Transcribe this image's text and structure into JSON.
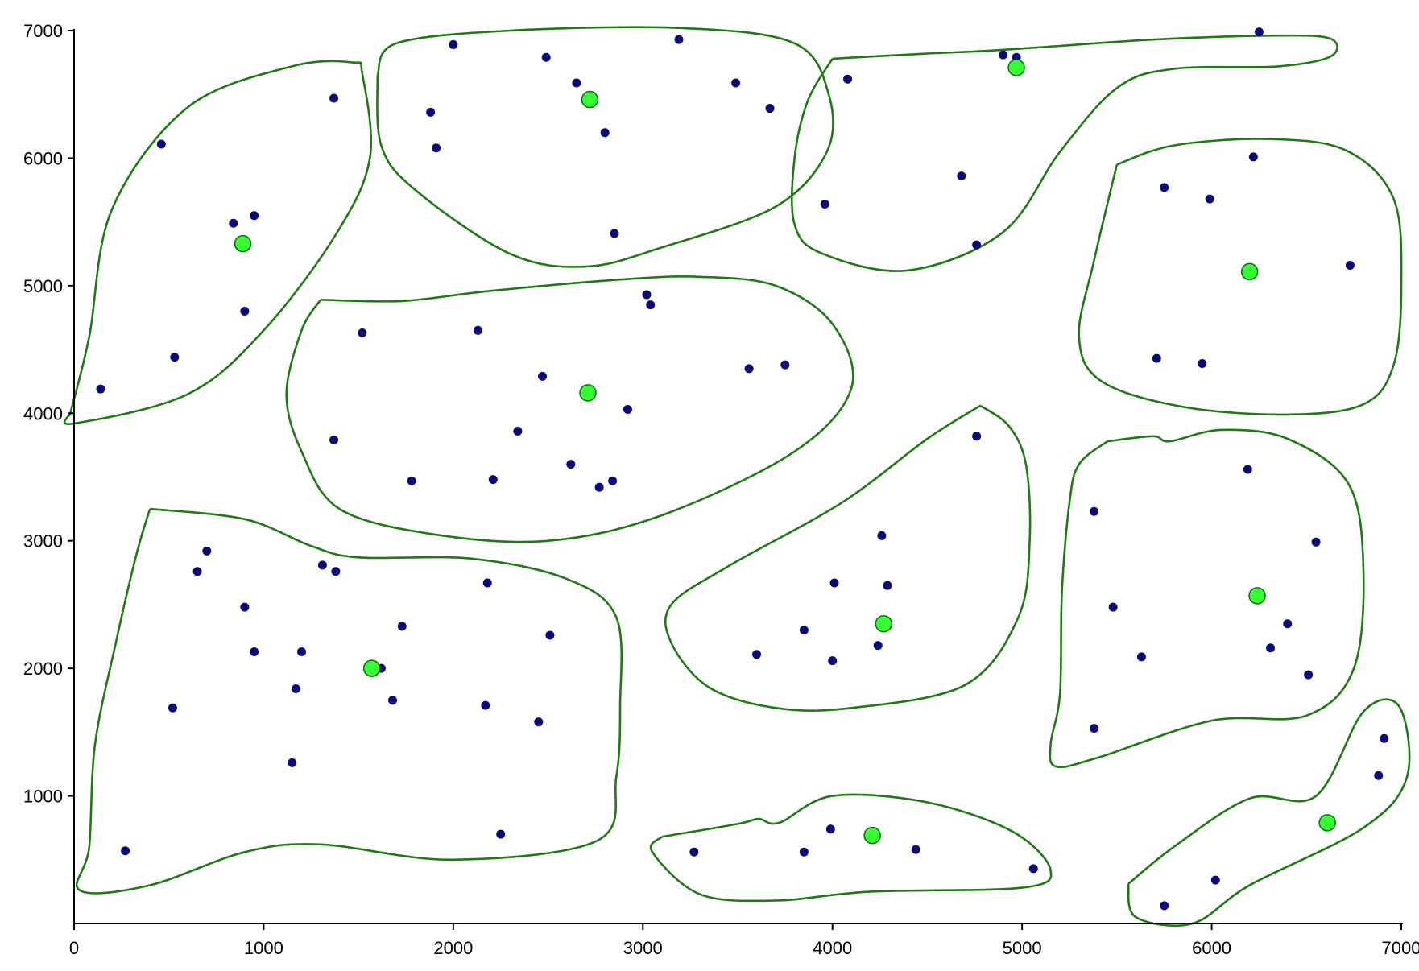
{
  "chart_data": {
    "type": "scatter",
    "title": "",
    "xlabel": "",
    "ylabel": "",
    "xlim": [
      0,
      7000
    ],
    "ylim": [
      0,
      7000
    ],
    "x_ticks": [
      "0",
      "1000",
      "2000",
      "3000",
      "4000",
      "5000",
      "6000",
      "7000"
    ],
    "y_ticks": [
      "1000",
      "2000",
      "3000",
      "4000",
      "5000",
      "6000",
      "7000"
    ],
    "grid": false,
    "legend": "none",
    "colors": {
      "points": "#0a0a7a",
      "centers_fill": "#33ff33",
      "centers_stroke": "#116611",
      "boundary": "#1e7a12",
      "axis": "#000000"
    },
    "series": [
      {
        "role": "points",
        "points": [
          [
            140,
            4190
          ],
          [
            460,
            6110
          ],
          [
            530,
            4440
          ],
          [
            840,
            5490
          ],
          [
            900,
            4800
          ],
          [
            950,
            5550
          ],
          [
            1370,
            6470
          ],
          [
            1880,
            6360
          ],
          [
            1910,
            6080
          ],
          [
            2000,
            6890
          ],
          [
            2490,
            6790
          ],
          [
            2650,
            6590
          ],
          [
            2800,
            6200
          ],
          [
            2850,
            5410
          ],
          [
            3190,
            6930
          ],
          [
            3490,
            6590
          ],
          [
            3670,
            6390
          ],
          [
            4080,
            6620
          ],
          [
            3960,
            5640
          ],
          [
            4680,
            5860
          ],
          [
            4760,
            5320
          ],
          [
            4900,
            6810
          ],
          [
            4970,
            6790
          ],
          [
            6250,
            6990
          ],
          [
            6220,
            6010
          ],
          [
            5750,
            5770
          ],
          [
            5990,
            5680
          ],
          [
            6730,
            5160
          ],
          [
            5710,
            4430
          ],
          [
            5950,
            4390
          ],
          [
            1520,
            4630
          ],
          [
            2130,
            4650
          ],
          [
            3020,
            4930
          ],
          [
            3040,
            4850
          ],
          [
            3560,
            4350
          ],
          [
            3750,
            4380
          ],
          [
            2470,
            4290
          ],
          [
            1370,
            3790
          ],
          [
            2340,
            3860
          ],
          [
            2920,
            4030
          ],
          [
            1780,
            3470
          ],
          [
            2210,
            3480
          ],
          [
            2620,
            3600
          ],
          [
            2770,
            3420
          ],
          [
            2840,
            3470
          ],
          [
            4760,
            3820
          ],
          [
            4260,
            3040
          ],
          [
            4010,
            2670
          ],
          [
            4290,
            2650
          ],
          [
            3850,
            2300
          ],
          [
            3600,
            2110
          ],
          [
            4240,
            2180
          ],
          [
            4000,
            2060
          ],
          [
            5380,
            3230
          ],
          [
            6190,
            3560
          ],
          [
            6550,
            2990
          ],
          [
            5480,
            2480
          ],
          [
            5630,
            2090
          ],
          [
            6400,
            2350
          ],
          [
            6310,
            2160
          ],
          [
            6510,
            1950
          ],
          [
            5380,
            1530
          ],
          [
            700,
            2920
          ],
          [
            650,
            2760
          ],
          [
            1310,
            2810
          ],
          [
            1380,
            2760
          ],
          [
            2180,
            2670
          ],
          [
            900,
            2480
          ],
          [
            950,
            2130
          ],
          [
            1200,
            2130
          ],
          [
            1730,
            2330
          ],
          [
            2510,
            2260
          ],
          [
            1620,
            2000
          ],
          [
            1170,
            1840
          ],
          [
            1680,
            1750
          ],
          [
            520,
            1690
          ],
          [
            2170,
            1710
          ],
          [
            2450,
            1580
          ],
          [
            1150,
            1260
          ],
          [
            270,
            570
          ],
          [
            2250,
            700
          ],
          [
            3270,
            560
          ],
          [
            3850,
            560
          ],
          [
            3990,
            740
          ],
          [
            4440,
            580
          ],
          [
            5060,
            430
          ],
          [
            6910,
            1450
          ],
          [
            6880,
            1160
          ],
          [
            6020,
            340
          ],
          [
            5750,
            140
          ]
        ]
      },
      {
        "role": "centers",
        "points": [
          [
            890,
            5330
          ],
          [
            2720,
            6460
          ],
          [
            4970,
            6710
          ],
          [
            6200,
            5110
          ],
          [
            2710,
            4160
          ],
          [
            4270,
            2350
          ],
          [
            6240,
            2570
          ],
          [
            1570,
            2000
          ],
          [
            4210,
            690
          ],
          [
            6610,
            790
          ]
        ]
      }
    ],
    "regions": [
      [
        [
          -20,
          4000
        ],
        [
          80,
          4600
        ],
        [
          200,
          5600
        ],
        [
          600,
          6400
        ],
        [
          1150,
          6720
        ],
        [
          1470,
          6750
        ],
        [
          1520,
          6660
        ],
        [
          1560,
          6000
        ],
        [
          1380,
          5400
        ],
        [
          1000,
          4650
        ],
        [
          600,
          4150
        ],
        [
          0,
          3920
        ],
        [
          -20,
          4000
        ]
      ],
      [
        [
          1600,
          6650
        ],
        [
          1700,
          6900
        ],
        [
          2300,
          7000
        ],
        [
          3200,
          7020
        ],
        [
          3800,
          6900
        ],
        [
          3980,
          6500
        ],
        [
          3970,
          6050
        ],
        [
          3700,
          5620
        ],
        [
          3100,
          5300
        ],
        [
          2700,
          5150
        ],
        [
          2300,
          5250
        ],
        [
          1800,
          5750
        ],
        [
          1620,
          6100
        ],
        [
          1600,
          6650
        ]
      ],
      [
        [
          4000,
          6780
        ],
        [
          4500,
          6820
        ],
        [
          4800,
          6840
        ],
        [
          5200,
          6880
        ],
        [
          5700,
          6930
        ],
        [
          6300,
          6960
        ],
        [
          6620,
          6940
        ],
        [
          6630,
          6800
        ],
        [
          6350,
          6720
        ],
        [
          5800,
          6700
        ],
        [
          5500,
          6550
        ],
        [
          5200,
          6050
        ],
        [
          4900,
          5420
        ],
        [
          4400,
          5120
        ],
        [
          3950,
          5250
        ],
        [
          3800,
          5480
        ],
        [
          3800,
          6000
        ],
        [
          3870,
          6450
        ],
        [
          4000,
          6780
        ]
      ],
      [
        [
          5500,
          5950
        ],
        [
          5800,
          6100
        ],
        [
          6300,
          6150
        ],
        [
          6710,
          6060
        ],
        [
          6960,
          5680
        ],
        [
          7000,
          5000
        ],
        [
          6960,
          4380
        ],
        [
          6800,
          4070
        ],
        [
          6400,
          3990
        ],
        [
          5850,
          4050
        ],
        [
          5420,
          4250
        ],
        [
          5300,
          4600
        ],
        [
          5380,
          5200
        ],
        [
          5500,
          5950
        ]
      ],
      [
        [
          1300,
          4890
        ],
        [
          1730,
          4880
        ],
        [
          2200,
          4960
        ],
        [
          2900,
          5050
        ],
        [
          3300,
          5070
        ],
        [
          3700,
          5000
        ],
        [
          4000,
          4700
        ],
        [
          4100,
          4200
        ],
        [
          3800,
          3700
        ],
        [
          3100,
          3200
        ],
        [
          2500,
          3000
        ],
        [
          1900,
          3050
        ],
        [
          1400,
          3250
        ],
        [
          1200,
          3700
        ],
        [
          1120,
          4150
        ],
        [
          1200,
          4650
        ],
        [
          1300,
          4890
        ]
      ],
      [
        [
          4780,
          4060
        ],
        [
          4930,
          3900
        ],
        [
          5020,
          3600
        ],
        [
          5040,
          3000
        ],
        [
          4980,
          2400
        ],
        [
          4700,
          1870
        ],
        [
          4100,
          1690
        ],
        [
          3700,
          1690
        ],
        [
          3350,
          1850
        ],
        [
          3150,
          2200
        ],
        [
          3150,
          2500
        ],
        [
          3450,
          2800
        ],
        [
          4050,
          3300
        ],
        [
          4500,
          3800
        ],
        [
          4780,
          4060
        ]
      ],
      [
        [
          5450,
          3780
        ],
        [
          5690,
          3820
        ],
        [
          5780,
          3780
        ],
        [
          6050,
          3870
        ],
        [
          6400,
          3800
        ],
        [
          6720,
          3450
        ],
        [
          6800,
          2800
        ],
        [
          6750,
          2000
        ],
        [
          6500,
          1630
        ],
        [
          6000,
          1590
        ],
        [
          5400,
          1300
        ],
        [
          5180,
          1230
        ],
        [
          5150,
          1400
        ],
        [
          5200,
          1800
        ],
        [
          5210,
          2600
        ],
        [
          5250,
          3300
        ],
        [
          5300,
          3600
        ],
        [
          5450,
          3780
        ]
      ],
      [
        [
          400,
          3250
        ],
        [
          900,
          3170
        ],
        [
          1250,
          2960
        ],
        [
          1500,
          2870
        ],
        [
          2100,
          2860
        ],
        [
          2600,
          2700
        ],
        [
          2860,
          2400
        ],
        [
          2880,
          1700
        ],
        [
          2860,
          1150
        ],
        [
          2760,
          650
        ],
        [
          2000,
          500
        ],
        [
          1300,
          620
        ],
        [
          900,
          560
        ],
        [
          400,
          300
        ],
        [
          30,
          260
        ],
        [
          80,
          600
        ],
        [
          110,
          1400
        ],
        [
          220,
          2200
        ],
        [
          330,
          2900
        ],
        [
          400,
          3250
        ]
      ],
      [
        [
          3100,
          680
        ],
        [
          3500,
          780
        ],
        [
          3610,
          820
        ],
        [
          3720,
          790
        ],
        [
          4000,
          1000
        ],
        [
          4500,
          950
        ],
        [
          4950,
          720
        ],
        [
          5150,
          420
        ],
        [
          5000,
          280
        ],
        [
          4200,
          250
        ],
        [
          3700,
          180
        ],
        [
          3300,
          230
        ],
        [
          3050,
          560
        ],
        [
          3100,
          680
        ]
      ],
      [
        [
          5560,
          310
        ],
        [
          5800,
          600
        ],
        [
          6200,
          980
        ],
        [
          6550,
          1000
        ],
        [
          6800,
          1660
        ],
        [
          6990,
          1700
        ],
        [
          7030,
          1150
        ],
        [
          6800,
          750
        ],
        [
          6200,
          300
        ],
        [
          5900,
          0
        ],
        [
          5600,
          50
        ],
        [
          5560,
          310
        ]
      ]
    ]
  }
}
